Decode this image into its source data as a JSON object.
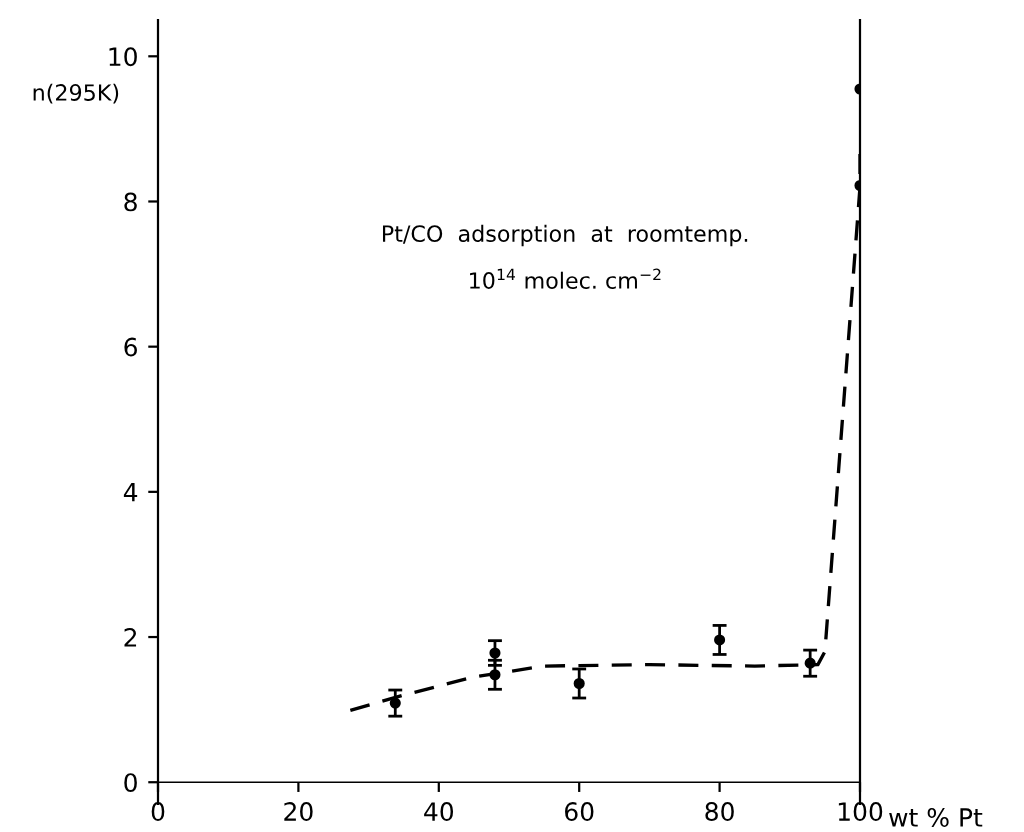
{
  "chart_data": {
    "type": "scatter",
    "ylabel": "n(295K)",
    "xlabel": "wt % Pt",
    "annotations": [
      "Pt/CO  adsorption  at  roomtemp.",
      "10$^{14}$ molec. cm$^{−2}$"
    ],
    "xlim": [
      0,
      100
    ],
    "ylim": [
      -0.3,
      10.5
    ],
    "xticks": [
      0,
      20,
      40,
      60,
      80,
      100
    ],
    "yticks": [
      0,
      2,
      4,
      6,
      8,
      10
    ],
    "grid": false,
    "legend": false,
    "series": [
      {
        "color": "#000000",
        "marker": "circle",
        "x": [
          33.8,
          48,
          48,
          60,
          80,
          92.9,
          100,
          100
        ],
        "values": [
          1.09,
          1.78,
          1.48,
          1.36,
          1.96,
          1.64,
          9.55,
          8.22
        ],
        "errors": [
          0.18,
          0.17,
          0.2,
          0.2,
          0.2,
          0.18,
          null,
          null
        ]
      },
      {
        "type": "line",
        "color": "#000000",
        "line_style": "dashed",
        "x": [
          27.4,
          35,
          45,
          55,
          70,
          85,
          94,
          95,
          100,
          100
        ],
        "values": [
          0.99,
          1.2,
          1.45,
          1.6,
          1.62,
          1.6,
          1.62,
          1.8,
          8.2,
          8.8
        ]
      }
    ]
  }
}
